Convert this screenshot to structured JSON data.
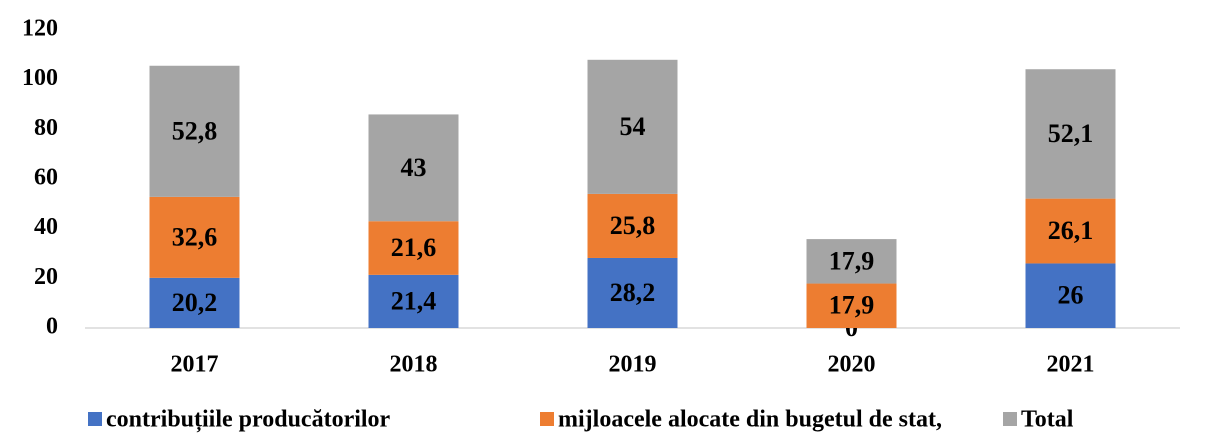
{
  "chart_data": {
    "type": "stacked_bar",
    "categories": [
      "2017",
      "2018",
      "2019",
      "2020",
      "2021"
    ],
    "series": [
      {
        "name": "contribuțiile producătorilor",
        "color": "#4472c4",
        "values": [
          20.2,
          21.4,
          28.2,
          0,
          26
        ],
        "value_labels": [
          "20,2",
          "21,4",
          "28,2",
          "0",
          "26"
        ]
      },
      {
        "name": "mijloacele alocate din bugetul de stat,",
        "color": "#ed7d31",
        "values": [
          32.6,
          21.6,
          25.8,
          17.9,
          26.1
        ],
        "value_labels": [
          "32,6",
          "21,6",
          "25,8",
          "17,9",
          "26,1"
        ]
      },
      {
        "name": "Total",
        "color": "#a5a5a5",
        "values": [
          52.8,
          43,
          54,
          17.9,
          52.1
        ],
        "value_labels": [
          "52,8",
          "43",
          "54",
          "17,9",
          "52,1"
        ]
      }
    ],
    "ylim": [
      0,
      120
    ],
    "yticks": [
      0,
      20,
      40,
      60,
      80,
      100,
      120
    ],
    "grid": false,
    "legend": "bottom"
  }
}
